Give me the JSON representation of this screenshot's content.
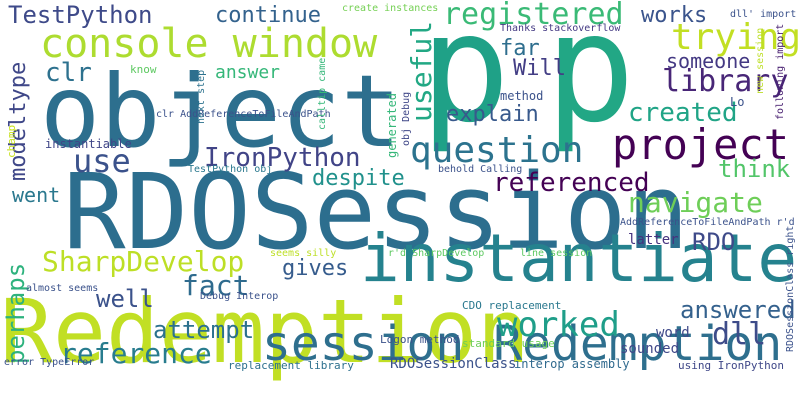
{
  "words": [
    {
      "text": "RDOSession",
      "color": "#2c6e8e"
    },
    {
      "text": "Redemption",
      "color": "#c1df24"
    },
    {
      "text": "object",
      "color": "#2d6f8e"
    },
    {
      "text": "p",
      "color": "#1fa187"
    },
    {
      "text": "p",
      "color": "#22a785"
    },
    {
      "text": "instantiate",
      "color": "#25828e"
    },
    {
      "text": "session Redemption",
      "color": "#2e6f8e"
    },
    {
      "text": "console window",
      "color": "#addc30"
    },
    {
      "text": "project",
      "color": "#440154"
    },
    {
      "text": "question",
      "color": "#2c738e"
    },
    {
      "text": "registered",
      "color": "#3aba76"
    },
    {
      "text": "TestPython",
      "color": "#3e4a89"
    },
    {
      "text": "continue",
      "color": "#33628d"
    },
    {
      "text": "works",
      "color": "#3a548c"
    },
    {
      "text": "trying",
      "color": "#c2df23"
    },
    {
      "text": "library",
      "color": "#482677"
    },
    {
      "text": "created",
      "color": "#20a486"
    },
    {
      "text": "someone",
      "color": "#443983"
    },
    {
      "text": "useful",
      "color": "#22a884"
    },
    {
      "text": "far",
      "color": "#2e6e8e"
    },
    {
      "text": "Will",
      "color": "#433e85"
    },
    {
      "text": "clr",
      "color": "#2d718e"
    },
    {
      "text": "answer",
      "color": "#35b779"
    },
    {
      "text": "explain",
      "color": "#38598c"
    },
    {
      "text": "use",
      "color": "#3b528b"
    },
    {
      "text": "IronPython",
      "color": "#414487"
    },
    {
      "text": "referenced",
      "color": "#440154"
    },
    {
      "text": "think",
      "color": "#52c569"
    },
    {
      "text": "navigate",
      "color": "#6ece58"
    },
    {
      "text": "despite",
      "color": "#21918c"
    },
    {
      "text": "went",
      "color": "#2a788e"
    },
    {
      "text": "SharpDevelop",
      "color": "#bddf26"
    },
    {
      "text": "RDO",
      "color": "#3e4a89"
    },
    {
      "text": "fact",
      "color": "#2f6b8e"
    },
    {
      "text": "gives",
      "color": "#365c8d"
    },
    {
      "text": "well",
      "color": "#3b528b"
    },
    {
      "text": "worked",
      "color": "#1f9e89"
    },
    {
      "text": "answered",
      "color": "#34618d"
    },
    {
      "text": "dll",
      "color": "#3e4c8a"
    },
    {
      "text": "attempt",
      "color": "#2c718e"
    },
    {
      "text": "reference",
      "color": "#287c8e"
    },
    {
      "text": "perhaps",
      "color": "#2db27d"
    },
    {
      "text": "modeltype",
      "color": "#3f4788"
    },
    {
      "text": "instantiable",
      "color": "#404688"
    },
    {
      "text": "champ",
      "color": "#c8e020"
    },
    {
      "text": "know",
      "color": "#5ec962"
    },
    {
      "text": "method",
      "color": "#3b528b"
    },
    {
      "text": "generated",
      "color": "#35b779"
    },
    {
      "text": "Lo",
      "color": "#3b528b"
    },
    {
      "text": "latter",
      "color": "#46327e"
    },
    {
      "text": "word",
      "color": "#3e4989"
    },
    {
      "text": "sounded",
      "color": "#3f4788"
    },
    {
      "text": "standard usage",
      "color": "#6ece58"
    },
    {
      "text": "RDOSessionClass",
      "color": "#3b528b"
    },
    {
      "text": "interop assembly",
      "color": "#306a8e"
    },
    {
      "text": "replacement library",
      "color": "#2d708e"
    },
    {
      "text": "using IronPython",
      "color": "#3f4788"
    },
    {
      "text": "CDO replacement",
      "color": "#2a788e"
    },
    {
      "text": "Logon method",
      "color": "#3b528b"
    },
    {
      "text": "Debug Interop",
      "color": "#3b528b"
    },
    {
      "text": "create instances",
      "color": "#75d054"
    },
    {
      "text": "Thanks stackoverflow",
      "color": "#443983"
    },
    {
      "text": "dll' import",
      "color": "#3b528b"
    },
    {
      "text": "new session",
      "color": "#bddf26"
    },
    {
      "text": "following import",
      "color": "#481f70"
    },
    {
      "text": "clr AddReferenceToFileAndPath",
      "color": "#3b528b"
    },
    {
      "text": "next step",
      "color": "#2c728e"
    },
    {
      "text": "calltip came",
      "color": "#35b779"
    },
    {
      "text": "obj Debug",
      "color": "#3f4788"
    },
    {
      "text": "TestPython obj",
      "color": "#2a788e"
    },
    {
      "text": "behold Calling",
      "color": "#3b528b"
    },
    {
      "text": "AddReferenceToFileAndPath r'd",
      "color": "#3b528b"
    },
    {
      "text": "seems silly",
      "color": "#bddf26"
    },
    {
      "text": "r'd SharpDevelop",
      "color": "#5ec962"
    },
    {
      "text": "line session",
      "color": "#5ec962"
    },
    {
      "text": "almost seems",
      "color": "#3b528b"
    },
    {
      "text": "error TypeError",
      "color": "#3b528b"
    },
    {
      "text": "RDOSessionClass right",
      "color": "#3b528b"
    }
  ]
}
